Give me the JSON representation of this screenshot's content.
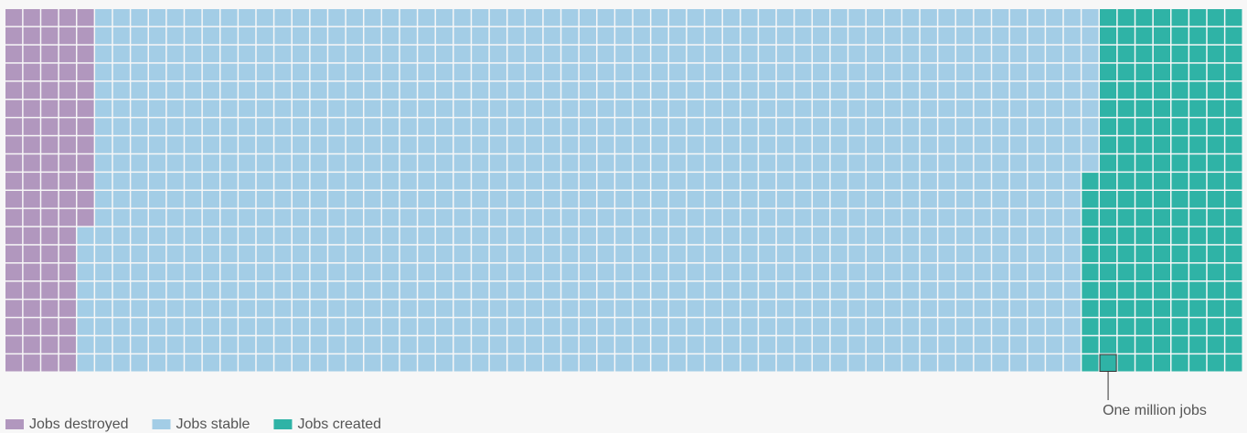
{
  "chart_data": {
    "type": "waffle",
    "series": [
      {
        "name": "Jobs destroyed",
        "color": "#b197be",
        "values": [
          92
        ]
      },
      {
        "name": "Jobs stable",
        "color": "#a3cde6",
        "values": [
          1117
        ]
      },
      {
        "name": "Jobs created",
        "color": "#2fb3a6",
        "values": [
          171
        ]
      }
    ],
    "annotation": "One million jobs"
  }
}
